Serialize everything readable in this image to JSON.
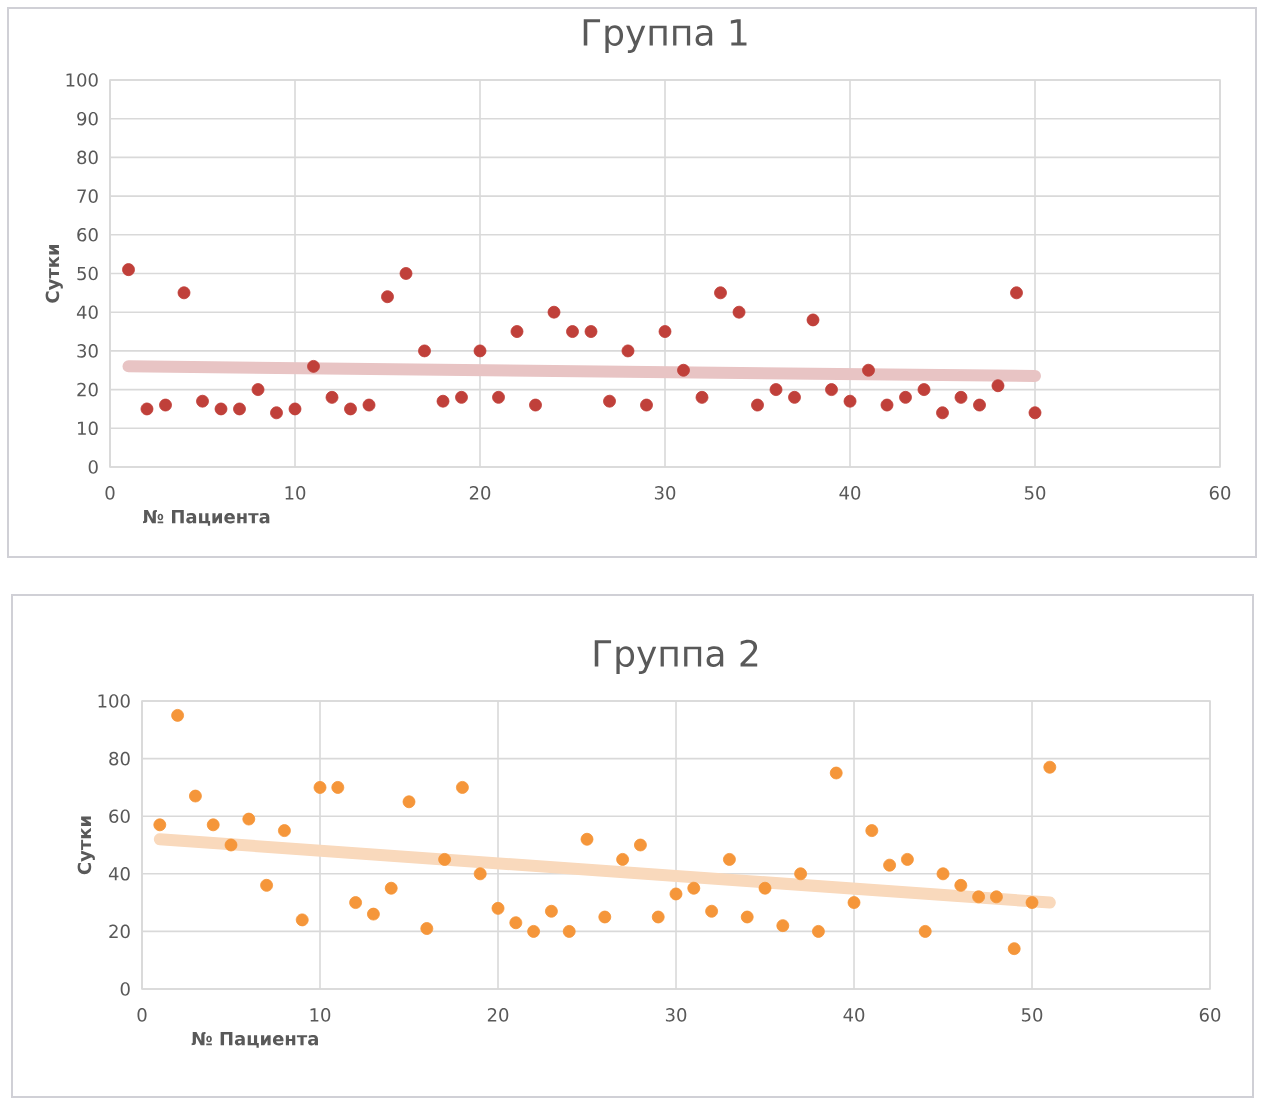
{
  "chart_data": [
    {
      "type": "scatter",
      "title": "Группа 1",
      "xlabel": "№ Пациента",
      "ylabel": "Сутки",
      "xlim": [
        0,
        60
      ],
      "xticks": [
        0,
        10,
        20,
        30,
        40,
        50,
        60
      ],
      "ylim": [
        0,
        100
      ],
      "yticks": [
        0,
        10,
        20,
        30,
        40,
        50,
        60,
        70,
        80,
        90,
        100
      ],
      "grid": true,
      "series": [
        {
          "marker": "circle",
          "color": "#c0403a",
          "x": [
            1,
            2,
            3,
            4,
            5,
            6,
            7,
            8,
            9,
            10,
            11,
            12,
            13,
            14,
            15,
            16,
            17,
            18,
            19,
            20,
            21,
            22,
            23,
            24,
            25,
            26,
            27,
            28,
            29,
            30,
            31,
            32,
            33,
            34,
            35,
            36,
            37,
            38,
            39,
            40,
            41,
            42,
            43,
            44,
            45,
            46,
            47,
            48,
            49,
            50
          ],
          "values": [
            51,
            15,
            16,
            45,
            17,
            15,
            15,
            20,
            14,
            15,
            26,
            18,
            15,
            16,
            44,
            50,
            30,
            17,
            18,
            30,
            18,
            35,
            16,
            40,
            35,
            35,
            17,
            30,
            16,
            35,
            25,
            18,
            45,
            40,
            16,
            20,
            18,
            38,
            20,
            17,
            25,
            16,
            18,
            20,
            14,
            18,
            16,
            21,
            45,
            14
          ]
        },
        {
          "type": "line",
          "color": "#e8c4c4",
          "x": [
            1,
            50
          ],
          "values": [
            26,
            23.5
          ]
        }
      ]
    },
    {
      "type": "scatter",
      "title": "Группа 2",
      "xlabel": "№ Пациента",
      "ylabel": "Сутки",
      "xlim": [
        0,
        60
      ],
      "xticks": [
        0,
        10,
        20,
        30,
        40,
        50,
        60
      ],
      "ylim": [
        0,
        100
      ],
      "yticks": [
        0,
        20,
        40,
        60,
        80,
        100
      ],
      "grid": true,
      "series": [
        {
          "marker": "circle",
          "color": "#f5963a",
          "x": [
            1,
            2,
            3,
            4,
            5,
            6,
            7,
            8,
            9,
            10,
            11,
            12,
            13,
            14,
            15,
            16,
            17,
            18,
            19,
            20,
            21,
            22,
            23,
            24,
            25,
            26,
            27,
            28,
            29,
            30,
            31,
            32,
            33,
            34,
            35,
            36,
            37,
            38,
            39,
            40,
            41,
            42,
            43,
            44,
            45,
            46,
            47,
            48,
            49,
            50,
            51
          ],
          "values": [
            57,
            95,
            67,
            57,
            50,
            59,
            36,
            55,
            24,
            70,
            70,
            30,
            26,
            35,
            65,
            21,
            45,
            70,
            40,
            28,
            23,
            20,
            27,
            20,
            52,
            25,
            45,
            50,
            25,
            33,
            35,
            27,
            45,
            25,
            35,
            22,
            40,
            20,
            75,
            30,
            55,
            43,
            45,
            20,
            40,
            36,
            32,
            32,
            14,
            30,
            77
          ]
        },
        {
          "type": "line",
          "color": "#f9d9bc",
          "x": [
            1,
            51
          ],
          "values": [
            52,
            30
          ]
        }
      ]
    }
  ]
}
